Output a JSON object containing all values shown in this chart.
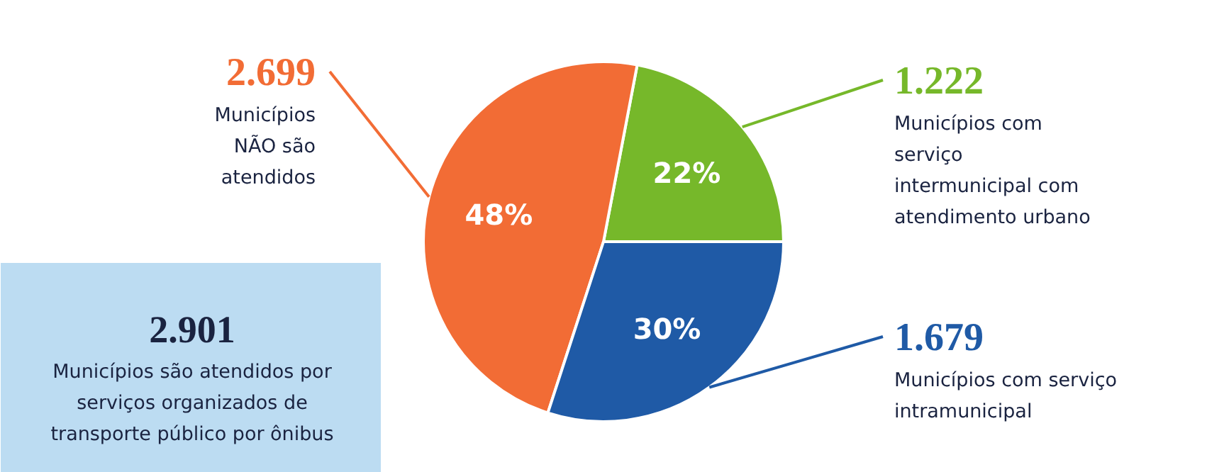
{
  "chart_data": {
    "type": "pie",
    "categories": [
      "Municípios com serviço intermunicipal com atendimento urbano",
      "Municípios NÃO são atendidos",
      "Municípios com serviço intramunicipal"
    ],
    "values": [
      22,
      48,
      30
    ],
    "colors": [
      "#76b82a",
      "#f26c35",
      "#1f5aa6"
    ],
    "value_labels": [
      "22%",
      "48%",
      "30%"
    ],
    "annotations": [
      "1.222",
      "2.699",
      "1.679",
      "2.901",
      "Municípios são atendidos por serviços organizados de transporte público por ônibus"
    ]
  }
}
